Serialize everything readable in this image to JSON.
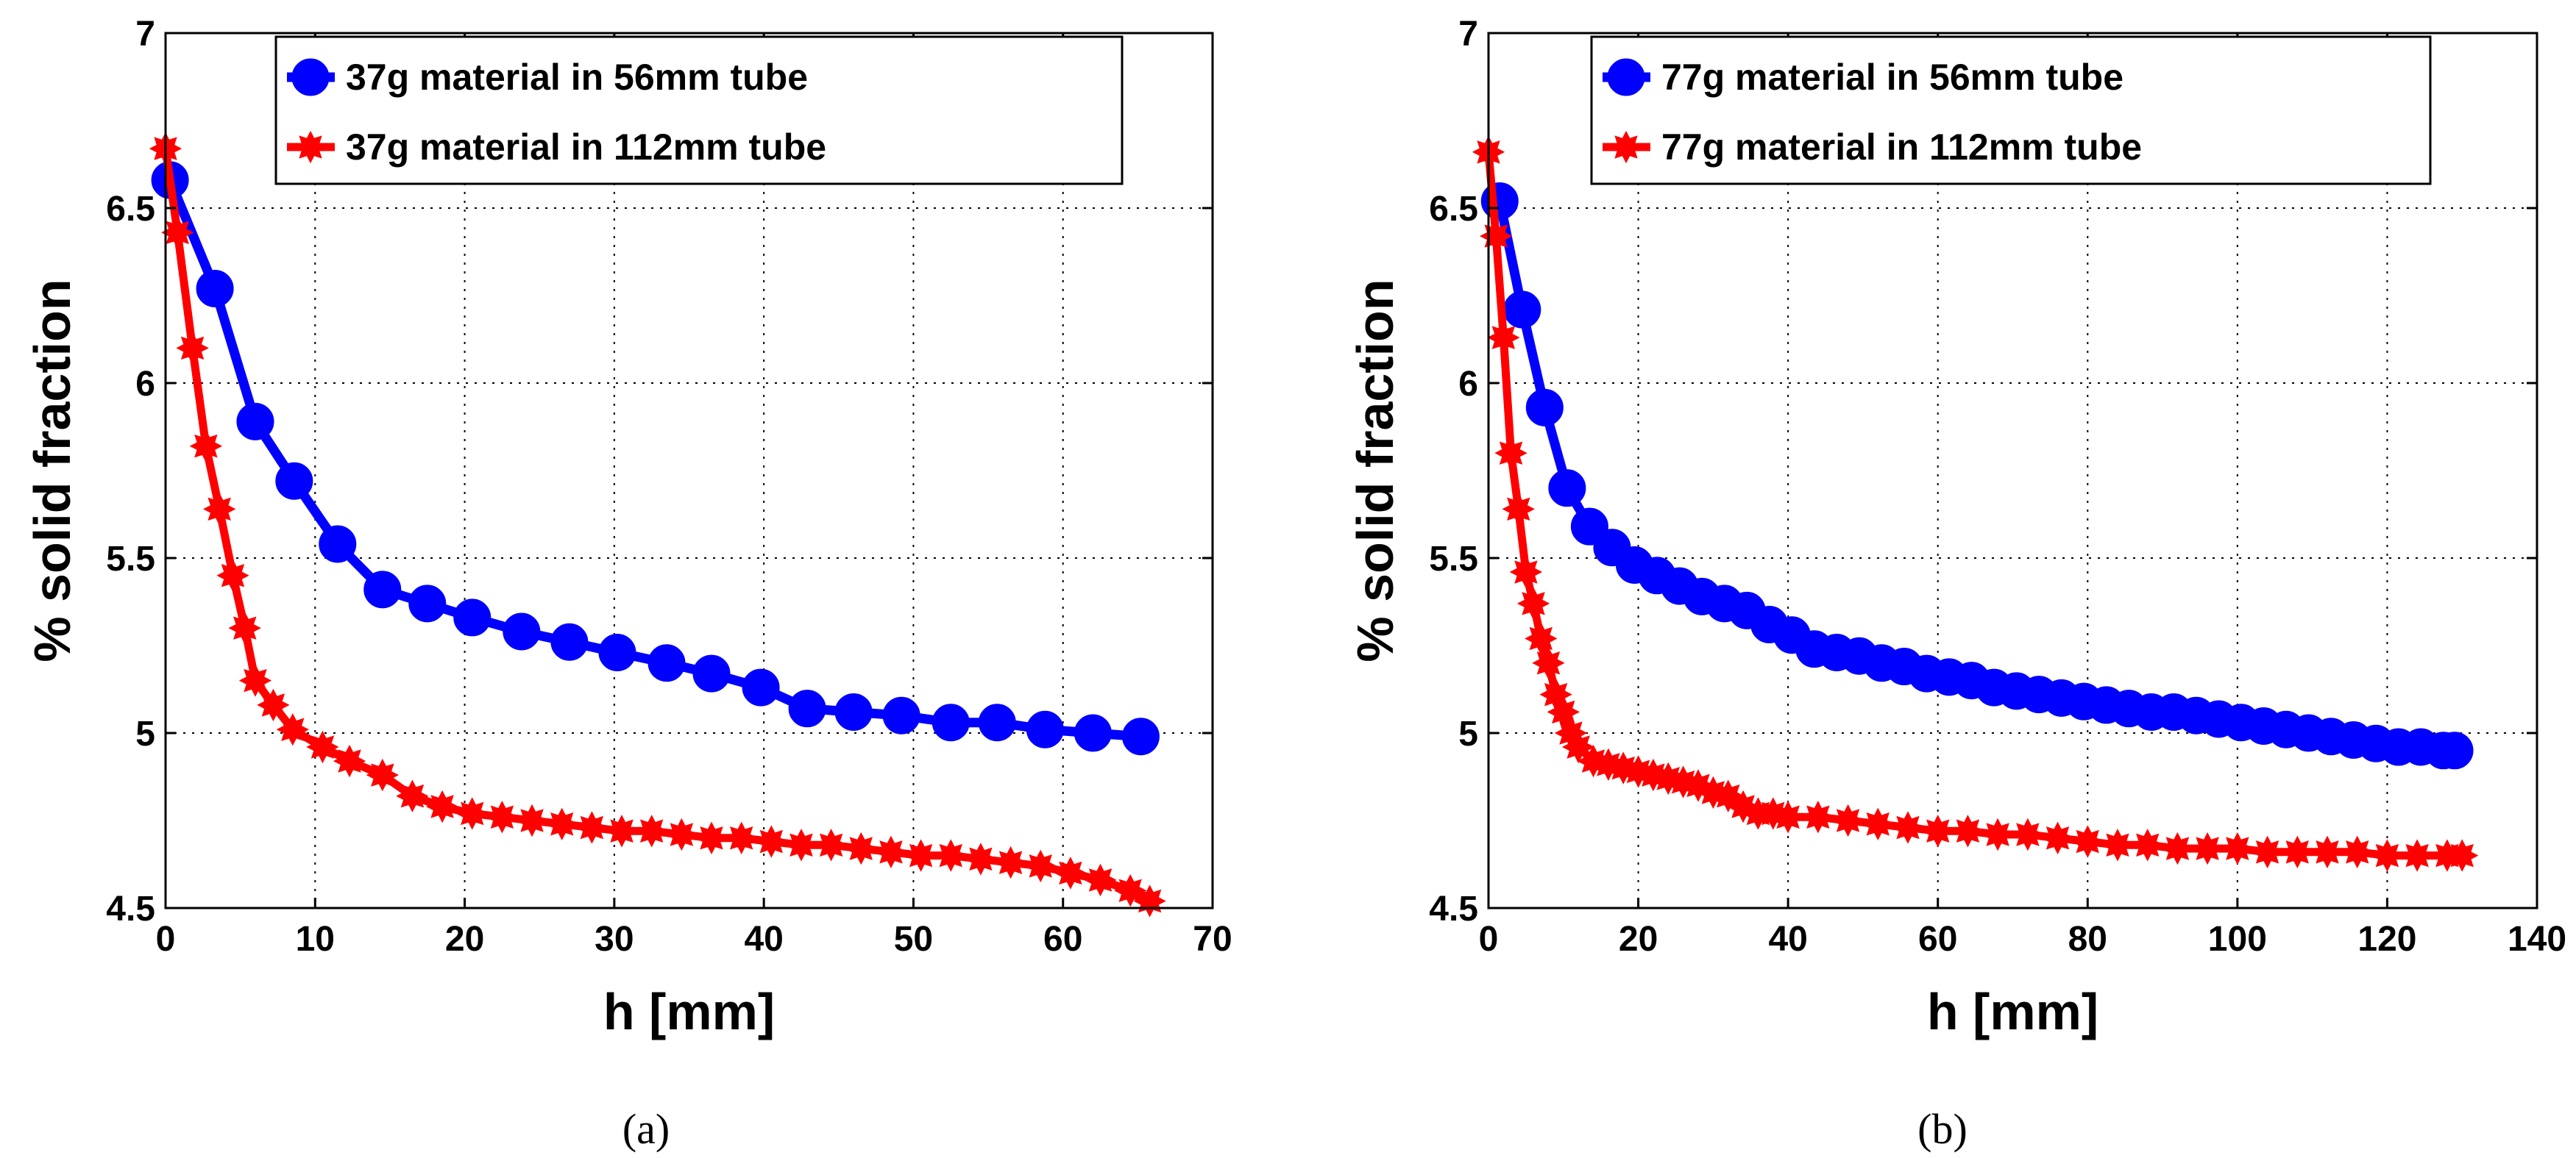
{
  "figure": {
    "captions": [
      "(a)",
      "(b)"
    ]
  },
  "chart_data": [
    {
      "type": "line",
      "panel": "(a)",
      "xlabel": "h [mm]",
      "ylabel": "% solid fraction",
      "xlim": [
        0,
        70
      ],
      "ylim": [
        4.5,
        7
      ],
      "xticks": [
        0,
        10,
        20,
        30,
        40,
        50,
        60,
        70
      ],
      "yticks": [
        4.5,
        5,
        5.5,
        6,
        6.5,
        7
      ],
      "grid": true,
      "legend_position": "top-right",
      "series": [
        {
          "name": "37g material in 56mm tube",
          "color": "#0000ff",
          "marker": "circle",
          "x": [
            0.3,
            3.3,
            6.0,
            8.6,
            11.5,
            14.5,
            17.5,
            20.5,
            23.8,
            27.0,
            30.2,
            33.5,
            36.5,
            39.8,
            42.9,
            46.0,
            49.2,
            52.5,
            55.6,
            58.8,
            62.0,
            65.2
          ],
          "y": [
            6.58,
            6.27,
            5.89,
            5.72,
            5.54,
            5.41,
            5.37,
            5.33,
            5.29,
            5.26,
            5.23,
            5.2,
            5.17,
            5.13,
            5.07,
            5.06,
            5.05,
            5.03,
            5.03,
            5.01,
            5.0,
            4.99
          ]
        },
        {
          "name": "37g material in 112mm tube",
          "color": "#ff0000",
          "marker": "star",
          "x": [
            0,
            0.8,
            1.8,
            2.7,
            3.6,
            4.5,
            5.3,
            6.0,
            7.2,
            8.5,
            10.5,
            12.3,
            14.5,
            16.5,
            18.5,
            20.5,
            22.5,
            24.5,
            26.5,
            28.5,
            30.5,
            32.5,
            34.5,
            36.5,
            38.5,
            40.5,
            42.5,
            44.5,
            46.5,
            48.5,
            50.5,
            52.5,
            54.5,
            56.5,
            58.5,
            60.5,
            62.5,
            64.5,
            65.8
          ],
          "y": [
            6.67,
            6.43,
            6.1,
            5.82,
            5.64,
            5.45,
            5.3,
            5.15,
            5.08,
            5.01,
            4.96,
            4.92,
            4.88,
            4.82,
            4.79,
            4.77,
            4.76,
            4.75,
            4.74,
            4.73,
            4.72,
            4.72,
            4.71,
            4.7,
            4.7,
            4.69,
            4.68,
            4.68,
            4.67,
            4.66,
            4.65,
            4.65,
            4.64,
            4.63,
            4.62,
            4.6,
            4.58,
            4.55,
            4.52
          ]
        }
      ]
    },
    {
      "type": "line",
      "panel": "(b)",
      "xlabel": "h [mm]",
      "ylabel": "% solid fraction",
      "xlim": [
        0,
        140
      ],
      "ylim": [
        4.5,
        7
      ],
      "xticks": [
        0,
        20,
        40,
        60,
        80,
        100,
        120,
        140
      ],
      "yticks": [
        4.5,
        5,
        5.5,
        6,
        6.5,
        7
      ],
      "grid": true,
      "legend_position": "top-right",
      "series": [
        {
          "name": "77g material in 56mm tube",
          "color": "#0000ff",
          "marker": "circle",
          "x": [
            1.5,
            4.5,
            7.5,
            10.5,
            13.5,
            16.5,
            19.5,
            22.5,
            25.5,
            28.5,
            31.5,
            34.5,
            37.5,
            40.5,
            43.5,
            46.5,
            49.5,
            52.5,
            55.5,
            58.5,
            61.5,
            64.5,
            67.5,
            70.5,
            73.5,
            76.5,
            79.5,
            82.5,
            85.5,
            88.5,
            91.5,
            94.5,
            97.5,
            100.5,
            103.5,
            106.5,
            109.5,
            112.5,
            115.5,
            118.5,
            121.5,
            124.5,
            127.5,
            129.0
          ],
          "y": [
            6.52,
            6.21,
            5.93,
            5.7,
            5.59,
            5.53,
            5.48,
            5.45,
            5.42,
            5.39,
            5.37,
            5.35,
            5.31,
            5.28,
            5.24,
            5.23,
            5.22,
            5.2,
            5.19,
            5.17,
            5.16,
            5.15,
            5.13,
            5.12,
            5.11,
            5.1,
            5.09,
            5.08,
            5.07,
            5.06,
            5.06,
            5.05,
            5.04,
            5.03,
            5.02,
            5.01,
            5.0,
            4.99,
            4.98,
            4.97,
            4.96,
            4.96,
            4.95,
            4.95
          ]
        },
        {
          "name": "77g material in 112mm tube",
          "color": "#ff0000",
          "marker": "star",
          "x": [
            0,
            1.0,
            2.0,
            3.0,
            4.0,
            5.0,
            6.0,
            7.0,
            8.0,
            9.0,
            10.0,
            11.0,
            12.0,
            14.0,
            16.0,
            18.0,
            20.0,
            22.0,
            24.0,
            26.0,
            28.0,
            30.0,
            32.0,
            34.0,
            36.0,
            38.0,
            40.0,
            44.0,
            48.0,
            52.0,
            56.0,
            60.0,
            64.0,
            68.0,
            72.0,
            76.0,
            80.0,
            84.0,
            88.0,
            92.0,
            96.0,
            100.0,
            104.0,
            108.0,
            112.0,
            116.0,
            120.0,
            124.0,
            128.0,
            130.0
          ],
          "y": [
            6.66,
            6.42,
            6.13,
            5.8,
            5.64,
            5.46,
            5.37,
            5.27,
            5.2,
            5.11,
            5.06,
            5.0,
            4.96,
            4.92,
            4.91,
            4.9,
            4.89,
            4.88,
            4.87,
            4.86,
            4.85,
            4.83,
            4.82,
            4.79,
            4.77,
            4.77,
            4.76,
            4.76,
            4.75,
            4.74,
            4.73,
            4.72,
            4.72,
            4.71,
            4.71,
            4.7,
            4.69,
            4.68,
            4.68,
            4.67,
            4.67,
            4.67,
            4.66,
            4.66,
            4.66,
            4.66,
            4.65,
            4.65,
            4.65,
            4.65
          ]
        }
      ]
    }
  ]
}
